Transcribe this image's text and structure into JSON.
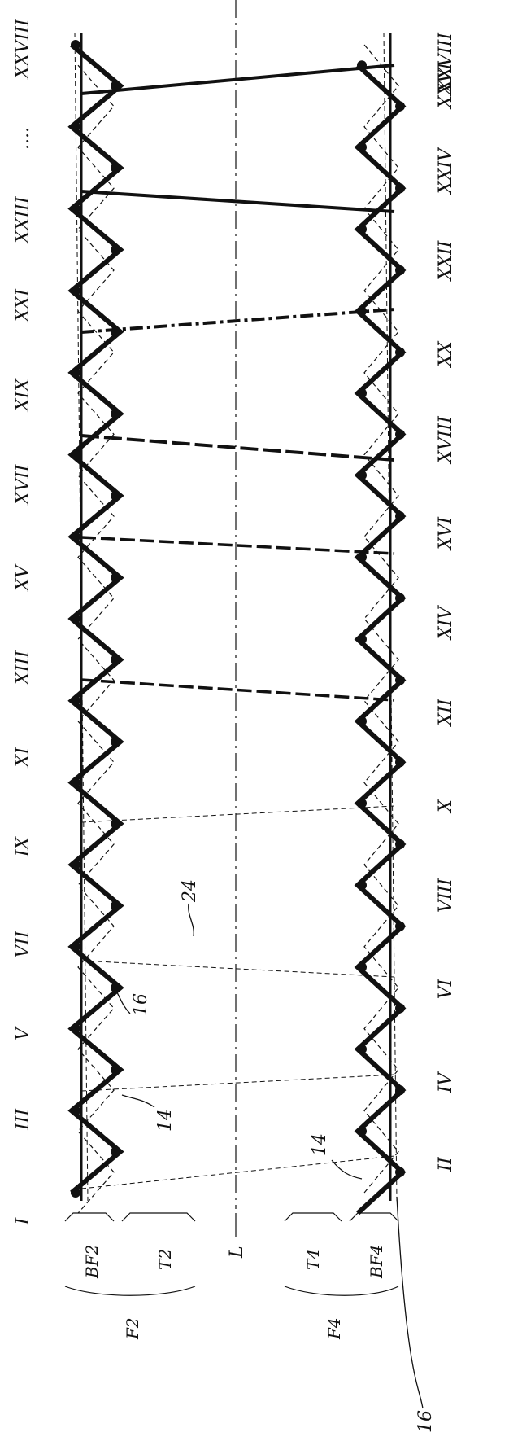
{
  "diagram": {
    "column_labels": [
      "I",
      "III",
      "V",
      "VII",
      "IX",
      "XI",
      "XIII",
      "XV",
      "XVII",
      "XIX",
      "XXI",
      "XXIII",
      "....",
      "XXVIII"
    ],
    "column_labels_bottom": [
      "II",
      "IV",
      "VI",
      "VIII",
      "X",
      "XII",
      "XIV",
      "XVI",
      "XVIII",
      "XX",
      "XXII",
      "XXIV",
      "XXVI",
      "XXVIII"
    ],
    "reference_numerals": {
      "upper_strand": "14",
      "upper_wire": "16",
      "lower_strand": "14",
      "lower_wire": "16",
      "cross_link": "24"
    },
    "zone_labels": {
      "bf2": "BF2",
      "t2": "T2",
      "axis": "L",
      "t4": "T4",
      "bf4": "BF4",
      "f2": "F2",
      "f4": "F4"
    },
    "colors": {
      "ink": "#111111",
      "background": "#ffffff"
    }
  }
}
